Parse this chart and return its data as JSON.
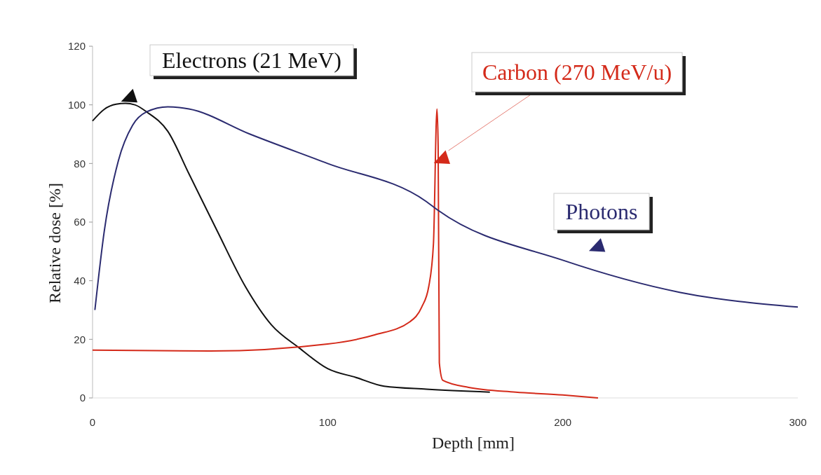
{
  "chart_data": {
    "type": "line",
    "xlabel": "Depth [mm]",
    "ylabel": "Relative dose [%]",
    "xlim": [
      0,
      300
    ],
    "xticks": [
      0,
      100,
      200,
      300
    ],
    "ylim": [
      0,
      120
    ],
    "yticks": [
      0,
      20,
      40,
      60,
      80,
      100,
      120
    ],
    "grid": false,
    "legend": false,
    "marker": "none",
    "line_style": "solid",
    "series": [
      {
        "name": "Electrons (21 MeV)",
        "color": "#111111",
        "x": [
          0,
          5,
          10,
          14,
          18,
          23,
          32,
          41,
          53,
          65,
          76,
          88,
          100,
          112,
          124,
          142,
          169
        ],
        "values": [
          94.5,
          98.5,
          100.2,
          100.5,
          100,
          97.6,
          91,
          76.5,
          57,
          38,
          25,
          17,
          10,
          7,
          4,
          3,
          2
        ]
      },
      {
        "name": "Carbon (270 MeV/u)",
        "color": "#d42a1a",
        "x": [
          0,
          50,
          100,
          120,
          135,
          140,
          143,
          145,
          146.5,
          147,
          147.5,
          149,
          160,
          180,
          200,
          215
        ],
        "values": [
          16.3,
          16,
          18.4,
          21.5,
          26,
          31,
          38,
          52.6,
          98.6,
          86,
          12,
          6,
          3.6,
          2,
          1,
          0
        ]
      },
      {
        "name": "Photons",
        "color": "#2b2b70",
        "x": [
          1,
          5,
          11,
          17,
          23,
          32,
          41,
          67,
          100,
          142,
          147,
          200,
          250,
          300
        ],
        "values": [
          30,
          57,
          81,
          93,
          97.6,
          99.3,
          98.6,
          90,
          80,
          67,
          64,
          47,
          36,
          31
        ]
      }
    ]
  }
}
